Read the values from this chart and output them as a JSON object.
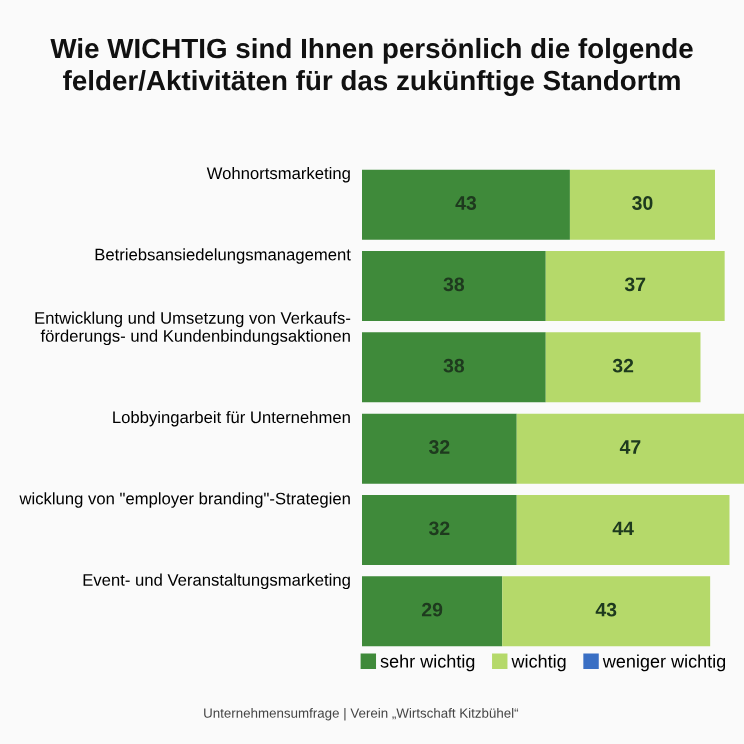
{
  "chart_data": {
    "type": "bar",
    "orientation": "horizontal",
    "stacked": true,
    "data_labels": true,
    "title": "Wie WICHTIG sind Ihnen persönlich die folgende\nfelder/Aktivitäten für das zukünftige Standortm",
    "categories": [
      "Wohnortsmarketing",
      "Betriebsansiedelungsmanagement",
      "Entwicklung und Umsetzung von Verkaufs-\nförderungs- und Kundenbindungsaktionen",
      "Lobbyingarbeit für Unternehmen",
      "wicklung von \"employer branding\"-Strategien",
      "Event- und Veranstaltungsmarketing"
    ],
    "series": [
      {
        "name": "sehr wichtig",
        "color": "#3f8a3a",
        "values": [
          43,
          38,
          38,
          32,
          32,
          29
        ]
      },
      {
        "name": "wichtig",
        "color": "#b5d96a",
        "values": [
          30,
          37,
          32,
          47,
          44,
          43
        ]
      },
      {
        "name": "weniger wichtig",
        "color": "#3a6fc4",
        "values": [
          null,
          null,
          null,
          null,
          null,
          null
        ]
      }
    ],
    "xlim": [
      0,
      79
    ],
    "legend": "bottom",
    "annotations": [
      "Unternehmensumfrage | Verein „Wirtschaft Kitzbühel“"
    ]
  }
}
